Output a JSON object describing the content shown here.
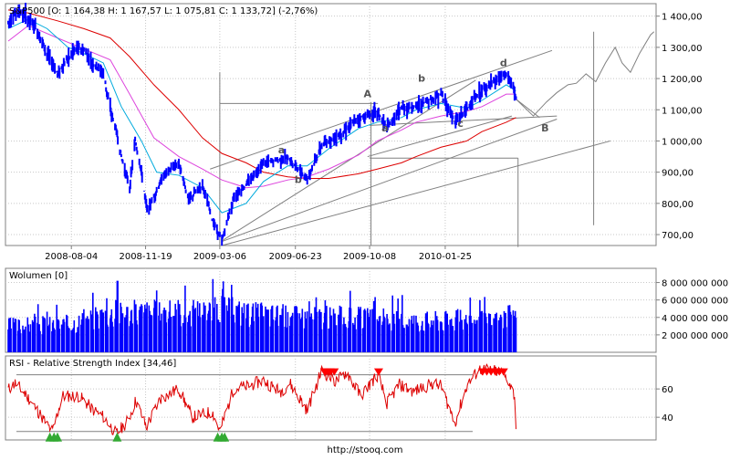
{
  "header": {
    "symbol": "S&P500",
    "ohlc": "[O: 1 164,38   H: 1 167,57   L: 1 075,81   C: 1 133,72] (-2,76%)"
  },
  "footer": {
    "url": "http://stooq.com"
  },
  "colors": {
    "price": "#0000ff",
    "ma_short": "#00aadd",
    "ma_mid": "#dd44dd",
    "ma_long": "#dd0000",
    "volume": "#0000ff",
    "rsi": "#dd0000",
    "rsi_high_marker": "#ff0000",
    "rsi_low_marker": "#33aa33",
    "annotation": "#808080",
    "grid": "#c8c8c8"
  },
  "chart_data": [
    {
      "id": "price",
      "type": "line",
      "title": "S&P500",
      "x_ticks": [
        "2008-08-04",
        "2008-11-19",
        "2009-03-06",
        "2009-06-23",
        "2009-10-08",
        "2010-01-25"
      ],
      "y_ticks": [
        "700,00",
        "800,00",
        "900,00",
        "1 000,00",
        "1 100,00",
        "1 200,00",
        "1 300,00",
        "1 400,00"
      ],
      "ylim": [
        665,
        1440
      ],
      "x_range": [
        "2008-05-01",
        "2010-11-25"
      ],
      "grid": true,
      "series": [
        {
          "key": "close",
          "points": [
            [
              "2008-05-05",
              1380
            ],
            [
              "2008-05-19",
              1420
            ],
            [
              "2008-06-03",
              1390
            ],
            [
              "2008-06-17",
              1350
            ],
            [
              "2008-06-30",
              1280
            ],
            [
              "2008-07-15",
              1215
            ],
            [
              "2008-07-30",
              1265
            ],
            [
              "2008-08-11",
              1295
            ],
            [
              "2008-08-22",
              1290
            ],
            [
              "2008-09-05",
              1245
            ],
            [
              "2008-09-19",
              1220
            ],
            [
              "2008-09-29",
              1100
            ],
            [
              "2008-10-07",
              1040
            ],
            [
              "2008-10-15",
              950
            ],
            [
              "2008-10-27",
              850
            ],
            [
              "2008-11-04",
              1000
            ],
            [
              "2008-11-13",
              900
            ],
            [
              "2008-11-21",
              780
            ],
            [
              "2008-12-01",
              820
            ],
            [
              "2008-12-15",
              890
            ],
            [
              "2009-01-06",
              930
            ],
            [
              "2009-01-20",
              810
            ],
            [
              "2009-02-09",
              860
            ],
            [
              "2009-02-23",
              750
            ],
            [
              "2009-03-09",
              680
            ],
            [
              "2009-03-26",
              820
            ],
            [
              "2009-04-13",
              860
            ],
            [
              "2009-05-08",
              930
            ],
            [
              "2009-06-12",
              945
            ],
            [
              "2009-07-10",
              880
            ],
            [
              "2009-07-31",
              985
            ],
            [
              "2009-08-28",
              1025
            ],
            [
              "2009-09-22",
              1070
            ],
            [
              "2009-10-19",
              1095
            ],
            [
              "2009-11-02",
              1040
            ],
            [
              "2009-11-23",
              1105
            ],
            [
              "2009-12-14",
              1110
            ],
            [
              "2010-01-19",
              1150
            ],
            [
              "2010-02-08",
              1060
            ],
            [
              "2010-02-25",
              1105
            ],
            [
              "2010-03-19",
              1160
            ],
            [
              "2010-04-23",
              1215
            ],
            [
              "2010-05-05",
              1165
            ],
            [
              "2010-05-07",
              1134
            ]
          ]
        },
        {
          "key": "ma_short",
          "points": [
            [
              "2008-05-05",
              1360
            ],
            [
              "2008-06-03",
              1390
            ],
            [
              "2008-06-30",
              1360
            ],
            [
              "2008-07-30",
              1300
            ],
            [
              "2008-08-22",
              1280
            ],
            [
              "2008-09-19",
              1250
            ],
            [
              "2008-10-15",
              1110
            ],
            [
              "2008-11-13",
              1000
            ],
            [
              "2008-12-05",
              900
            ],
            [
              "2009-01-06",
              890
            ],
            [
              "2009-02-09",
              850
            ],
            [
              "2009-03-09",
              770
            ],
            [
              "2009-04-13",
              800
            ],
            [
              "2009-05-08",
              870
            ],
            [
              "2009-06-12",
              920
            ],
            [
              "2009-07-10",
              920
            ],
            [
              "2009-08-10",
              975
            ],
            [
              "2009-09-22",
              1040
            ],
            [
              "2009-10-19",
              1060
            ],
            [
              "2009-11-23",
              1075
            ],
            [
              "2009-12-14",
              1100
            ],
            [
              "2010-01-19",
              1120
            ],
            [
              "2010-02-25",
              1105
            ],
            [
              "2010-03-19",
              1130
            ],
            [
              "2010-04-23",
              1180
            ],
            [
              "2010-05-07",
              1160
            ]
          ]
        },
        {
          "key": "ma_mid",
          "points": [
            [
              "2008-05-05",
              1320
            ],
            [
              "2008-06-03",
              1370
            ],
            [
              "2008-07-15",
              1330
            ],
            [
              "2008-08-22",
              1295
            ],
            [
              "2008-09-29",
              1260
            ],
            [
              "2008-10-27",
              1150
            ],
            [
              "2008-12-01",
              1010
            ],
            [
              "2009-01-06",
              950
            ],
            [
              "2009-02-09",
              910
            ],
            [
              "2009-03-09",
              875
            ],
            [
              "2009-04-13",
              850
            ],
            [
              "2009-05-08",
              855
            ],
            [
              "2009-06-12",
              875
            ],
            [
              "2009-07-10",
              885
            ],
            [
              "2009-08-10",
              910
            ],
            [
              "2009-09-22",
              955
            ],
            [
              "2009-10-19",
              1000
            ],
            [
              "2009-11-23",
              1035
            ],
            [
              "2009-12-14",
              1060
            ],
            [
              "2010-01-19",
              1080
            ],
            [
              "2010-02-25",
              1095
            ],
            [
              "2010-03-19",
              1110
            ],
            [
              "2010-04-23",
              1150
            ],
            [
              "2010-05-07",
              1150
            ]
          ]
        },
        {
          "key": "ma_long",
          "points": [
            [
              "2008-05-05",
              1420
            ],
            [
              "2008-06-03",
              1410
            ],
            [
              "2008-07-15",
              1385
            ],
            [
              "2008-08-22",
              1360
            ],
            [
              "2008-09-29",
              1330
            ],
            [
              "2008-10-27",
              1270
            ],
            [
              "2008-12-01",
              1180
            ],
            [
              "2009-01-06",
              1100
            ],
            [
              "2009-02-09",
              1010
            ],
            [
              "2009-03-09",
              960
            ],
            [
              "2009-04-13",
              930
            ],
            [
              "2009-05-08",
              900
            ],
            [
              "2009-06-12",
              885
            ],
            [
              "2009-07-10",
              880
            ],
            [
              "2009-08-10",
              880
            ],
            [
              "2009-09-22",
              895
            ],
            [
              "2009-10-19",
              910
            ],
            [
              "2009-11-23",
              930
            ],
            [
              "2009-12-14",
              950
            ],
            [
              "2010-01-19",
              980
            ],
            [
              "2010-02-25",
              1000
            ],
            [
              "2010-03-19",
              1030
            ],
            [
              "2010-04-23",
              1060
            ],
            [
              "2010-05-07",
              1075
            ]
          ]
        }
      ],
      "annotations": {
        "labels": [
          {
            "text": "A",
            "x": "2009-10-05",
            "y": 1140
          },
          {
            "text": "B",
            "x": "2010-06-18",
            "y": 1030
          },
          {
            "text": "a",
            "x": "2009-06-03",
            "y": 960
          },
          {
            "text": "b",
            "x": "2009-06-27",
            "y": 865
          },
          {
            "text": "a",
            "x": "2009-10-30",
            "y": 1030
          },
          {
            "text": "b",
            "x": "2009-12-22",
            "y": 1190
          },
          {
            "text": "c",
            "x": "2010-02-16",
            "y": 1045
          },
          {
            "text": "d",
            "x": "2010-04-19",
            "y": 1240
          }
        ],
        "trend_lines": [
          [
            [
              "2009-02-20",
              910
            ],
            [
              "2010-06-28",
              1290
            ]
          ],
          [
            [
              "2009-03-09",
              680
            ],
            [
              "2010-03-10",
              1195
            ]
          ],
          [
            [
              "2009-03-09",
              678
            ],
            [
              "2010-07-05",
              1070
            ]
          ],
          [
            [
              "2009-03-09",
              665
            ],
            [
              "2010-09-20",
              1000
            ]
          ],
          [
            [
              "2009-10-08",
              1050
            ],
            [
              "2010-07-05",
              1080
            ]
          ],
          [
            [
              "2010-05-07",
              1134
            ],
            [
              "2010-06-10",
              1075
            ]
          ],
          [
            [
              "2009-10-05",
              950
            ],
            [
              "2010-05-01",
              1080
            ]
          ]
        ],
        "h_lines": [
          {
            "from": "2009-03-06",
            "to": "2009-10-20",
            "y": 1120
          },
          {
            "from": "2009-10-08",
            "to": "2010-05-10",
            "y": 945
          }
        ],
        "v_lines": [
          {
            "x": "2009-03-06",
            "y1": 665,
            "y2": 1220
          },
          {
            "x": "2009-10-10",
            "y1": 665,
            "y2": 1125
          },
          {
            "x": "2010-05-10",
            "y1": 660,
            "y2": 945
          },
          {
            "x": "2010-08-27",
            "y1": 730,
            "y2": 1350
          }
        ],
        "projection_path": [
          [
            "2010-05-07",
            1134
          ],
          [
            "2010-06-01",
            1080
          ],
          [
            "2010-06-20",
            1125
          ],
          [
            "2010-07-05",
            1155
          ],
          [
            "2010-07-21",
            1180
          ],
          [
            "2010-08-02",
            1185
          ],
          [
            "2010-08-16",
            1215
          ],
          [
            "2010-08-30",
            1190
          ],
          [
            "2010-09-13",
            1250
          ],
          [
            "2010-09-27",
            1300
          ],
          [
            "2010-10-07",
            1250
          ],
          [
            "2010-10-19",
            1220
          ],
          [
            "2010-11-01",
            1280
          ],
          [
            "2010-11-17",
            1340
          ],
          [
            "2010-11-22",
            1350
          ]
        ]
      }
    },
    {
      "id": "volume",
      "type": "bar",
      "title": "Wolumen [0]",
      "y_ticks": [
        "2 000 000 000",
        "4 000 000 000",
        "6 000 000 000",
        "8 000 000 000"
      ],
      "ylim": [
        0,
        9000000000
      ],
      "profile": [
        [
          "2008-05-01",
          3500000000
        ],
        [
          "2008-08-01",
          3800000000
        ],
        [
          "2008-09-20",
          5000000000
        ],
        [
          "2008-11-10",
          5400000000
        ],
        [
          "2009-01-15",
          5200000000
        ],
        [
          "2009-03-10",
          5800000000
        ],
        [
          "2009-05-01",
          5100000000
        ],
        [
          "2009-07-01",
          4800000000
        ],
        [
          "2009-09-15",
          4600000000
        ],
        [
          "2009-12-01",
          4200000000
        ],
        [
          "2010-02-01",
          4300000000
        ],
        [
          "2010-04-01",
          4100000000
        ],
        [
          "2010-05-07",
          5000000000
        ]
      ],
      "peak": [
        "2008-10-10",
        8200000000
      ]
    },
    {
      "id": "rsi",
      "type": "line",
      "title": "RSI - Relative Strength Index [34,46]",
      "y_ticks": [
        "40",
        "60"
      ],
      "ylim": [
        24,
        82
      ],
      "ref_lines": [
        30,
        70
      ],
      "points": [
        [
          "2008-05-01",
          58
        ],
        [
          "2008-05-15",
          64
        ],
        [
          "2008-06-01",
          55
        ],
        [
          "2008-06-20",
          42
        ],
        [
          "2008-07-01",
          34
        ],
        [
          "2008-07-08",
          30
        ],
        [
          "2008-07-22",
          55
        ],
        [
          "2008-08-15",
          55
        ],
        [
          "2008-09-05",
          45
        ],
        [
          "2008-09-20",
          40
        ],
        [
          "2008-10-08",
          28
        ],
        [
          "2008-10-25",
          38
        ],
        [
          "2008-11-05",
          52
        ],
        [
          "2008-11-20",
          33
        ],
        [
          "2008-12-10",
          53
        ],
        [
          "2009-01-06",
          60
        ],
        [
          "2009-01-25",
          40
        ],
        [
          "2009-02-23",
          44
        ],
        [
          "2009-03-06",
          30
        ],
        [
          "2009-03-26",
          60
        ],
        [
          "2009-04-15",
          62
        ],
        [
          "2009-05-08",
          66
        ],
        [
          "2009-06-01",
          58
        ],
        [
          "2009-06-15",
          64
        ],
        [
          "2009-07-10",
          45
        ],
        [
          "2009-07-31",
          73
        ],
        [
          "2009-08-20",
          65
        ],
        [
          "2009-09-05",
          72
        ],
        [
          "2009-09-25",
          55
        ],
        [
          "2009-10-06",
          62
        ],
        [
          "2009-10-20",
          70
        ],
        [
          "2009-11-02",
          50
        ],
        [
          "2009-11-20",
          63
        ],
        [
          "2009-12-10",
          58
        ],
        [
          "2010-01-08",
          64
        ],
        [
          "2010-01-19",
          62
        ],
        [
          "2010-02-08",
          36
        ],
        [
          "2010-02-25",
          62
        ],
        [
          "2010-03-15",
          74
        ],
        [
          "2010-04-15",
          72
        ],
        [
          "2010-04-26",
          66
        ],
        [
          "2010-05-05",
          55
        ],
        [
          "2010-05-07",
          34
        ]
      ],
      "overbought_markers": [
        "2009-08-04",
        "2009-08-07",
        "2009-08-12",
        "2009-08-18",
        "2009-10-21",
        "2010-03-20",
        "2010-03-26",
        "2010-04-01",
        "2010-04-07",
        "2010-04-13",
        "2010-04-19"
      ],
      "oversold_markers": [
        "2008-07-04",
        "2008-07-10",
        "2008-07-15",
        "2008-10-09",
        "2009-03-03",
        "2009-03-09",
        "2009-03-13"
      ]
    }
  ]
}
